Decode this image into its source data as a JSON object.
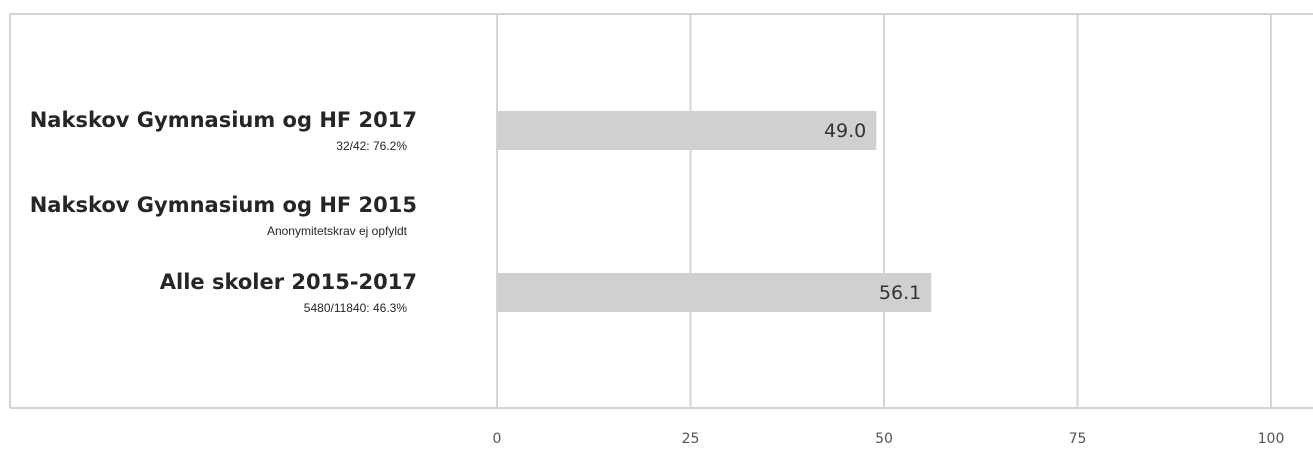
{
  "chart_data": {
    "type": "bar",
    "orientation": "horizontal",
    "categories": [
      {
        "title": "Nakskov Gymnasium og HF 2017",
        "subtitle": "32/42: 76.2%"
      },
      {
        "title": "Nakskov Gymnasium og HF 2015",
        "subtitle": "Anonymitetskrav ej opfyldt"
      },
      {
        "title": "Alle skoler 2015-2017",
        "subtitle": "5480/11840: 46.3%"
      }
    ],
    "values": [
      49.0,
      null,
      56.1
    ],
    "value_labels": [
      "49.0",
      "",
      "56.1"
    ],
    "xlim": [
      0,
      100
    ],
    "ticks": [
      "0",
      "25",
      "50",
      "75",
      "100"
    ],
    "grid": true,
    "bar_color": "#d0d0d0",
    "grid_color": "#d4d4d4"
  }
}
